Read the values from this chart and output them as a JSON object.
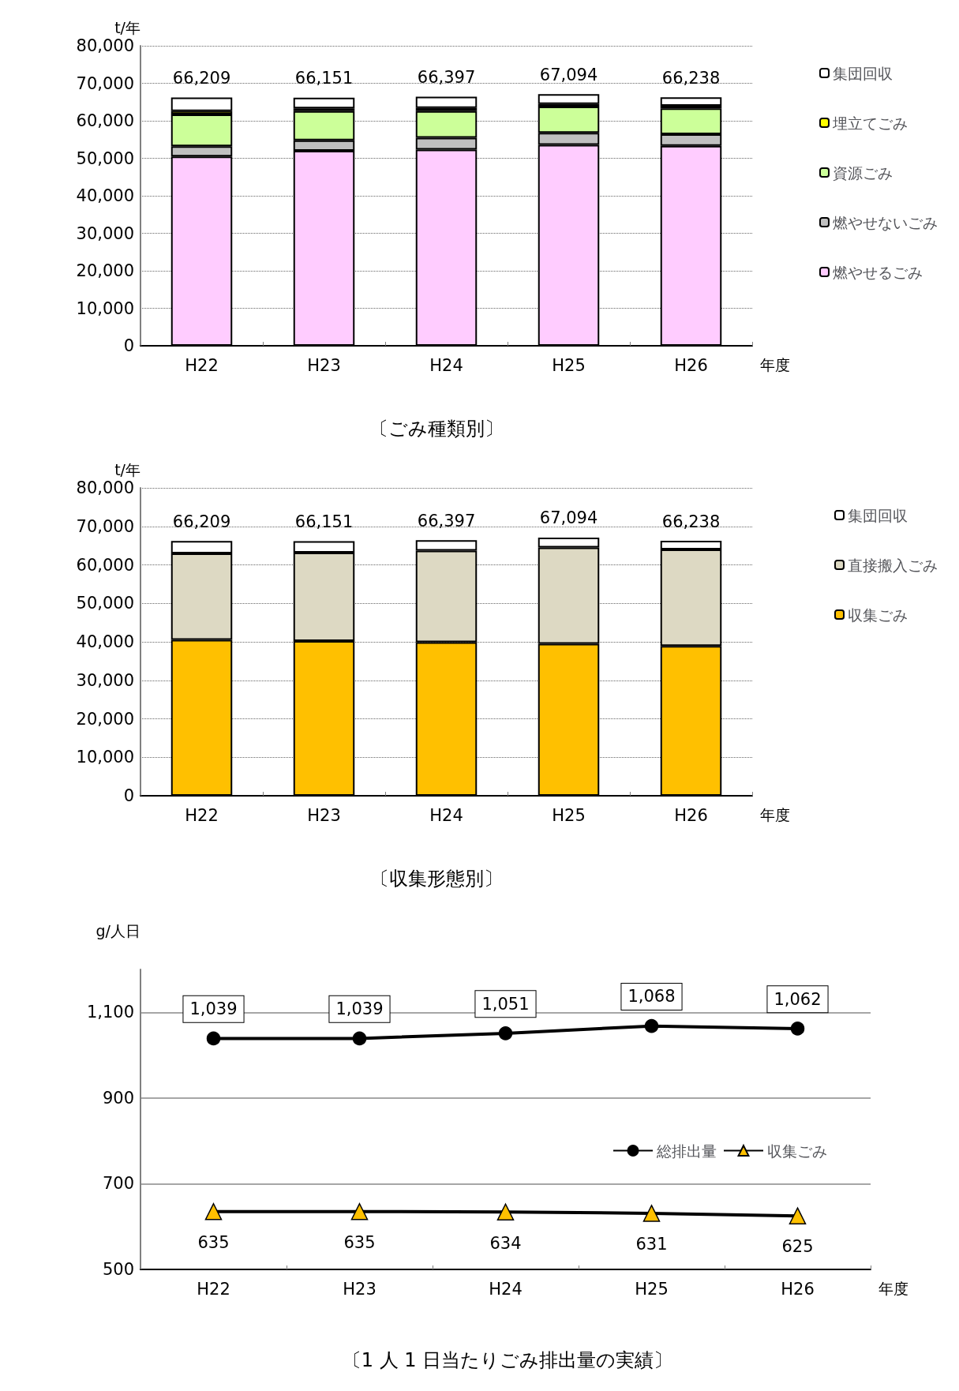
{
  "chart_data": [
    {
      "type": "bar",
      "title": "〔ごみ種類別〕",
      "ylabel": "t/年",
      "xlabel": "年度",
      "categories": [
        "H22",
        "H23",
        "H24",
        "H25",
        "H26"
      ],
      "stacked": true,
      "ylim": [
        0,
        80000
      ],
      "yticks": [
        0,
        {
          "value": 10000,
          "label": "10,000"
        },
        {
          "value": 20000,
          "label": "20,000"
        },
        {
          "value": 30000,
          "label": "30,000"
        },
        {
          "value": 40000,
          "label": "40,000"
        },
        {
          "value": 50000,
          "label": "50,000"
        },
        {
          "value": 60000,
          "label": "60,000"
        },
        {
          "value": 70000,
          "label": "70,000"
        },
        {
          "value": 80000,
          "label": "80,000"
        }
      ],
      "grid": "y",
      "legend": "right",
      "totals": [
        "66,209",
        "66,151",
        "66,397",
        "67,094",
        "66,238"
      ],
      "series": [
        {
          "name": "燃やせるごみ",
          "color": "#ffccff",
          "values": [
            50500,
            52000,
            52300,
            53600,
            53300
          ]
        },
        {
          "name": "燃やせないごみ",
          "color": "#c0c0c0",
          "values": [
            2700,
            2800,
            3200,
            3200,
            3100
          ]
        },
        {
          "name": "資源ごみ",
          "color": "#ccff99",
          "values": [
            8500,
            7800,
            7100,
            7000,
            6900
          ]
        },
        {
          "name": "埋立てごみ",
          "color": "#ffff00",
          "values": [
            900,
            700,
            800,
            700,
            700
          ]
        },
        {
          "name": "集団回収",
          "color": "#ffffff",
          "values": [
            3609,
            2851,
            2997,
            2594,
            2238
          ]
        }
      ]
    },
    {
      "type": "bar",
      "title": "〔収集形態別〕",
      "ylabel": "t/年",
      "xlabel": "年度",
      "categories": [
        "H22",
        "H23",
        "H24",
        "H25",
        "H26"
      ],
      "stacked": true,
      "ylim": [
        0,
        80000
      ],
      "yticks": [
        0,
        {
          "value": 10000,
          "label": "10,000"
        },
        {
          "value": 20000,
          "label": "20,000"
        },
        {
          "value": 30000,
          "label": "30,000"
        },
        {
          "value": 40000,
          "label": "40,000"
        },
        {
          "value": 50000,
          "label": "50,000"
        },
        {
          "value": 60000,
          "label": "60,000"
        },
        {
          "value": 70000,
          "label": "70,000"
        },
        {
          "value": 80000,
          "label": "80,000"
        }
      ],
      "grid": "y",
      "legend": "right",
      "totals": [
        "66,209",
        "66,151",
        "66,397",
        "67,094",
        "66,238"
      ],
      "series": [
        {
          "name": "収集ごみ",
          "color": "#ffc000",
          "values": [
            40500,
            40200,
            39900,
            39500,
            38900
          ]
        },
        {
          "name": "直接搬入ごみ",
          "color": "#ddd9c3",
          "values": [
            22500,
            23000,
            23800,
            25000,
            25100
          ]
        },
        {
          "name": "集団回収",
          "color": "#ffffff",
          "values": [
            3209,
            2951,
            2697,
            2594,
            2238
          ]
        }
      ]
    },
    {
      "type": "line",
      "title": "〔1 人 1 日当たりごみ排出量の実績〕",
      "ylabel": "g/人日",
      "xlabel": "年度",
      "categories": [
        "H22",
        "H23",
        "H24",
        "H25",
        "H26"
      ],
      "ylim": [
        500,
        1200
      ],
      "yticks": [
        500,
        700,
        900,
        {
          "value": 1100,
          "label": "1,100"
        }
      ],
      "grid": "y",
      "legend": "right",
      "line_style": "solid",
      "series": [
        {
          "name": "総排出量",
          "color": "#000000",
          "marker": "circle",
          "values": [
            1039,
            1039,
            1051,
            1068,
            1062
          ],
          "value_labels": [
            "1,039",
            "1,039",
            "1,051",
            "1,068",
            "1,062"
          ]
        },
        {
          "name": "収集ごみ",
          "color": "#ffc000",
          "marker": "triangle",
          "values": [
            635,
            635,
            634,
            631,
            625
          ],
          "value_labels": [
            "635",
            "635",
            "634",
            "631",
            "625"
          ]
        }
      ]
    }
  ]
}
